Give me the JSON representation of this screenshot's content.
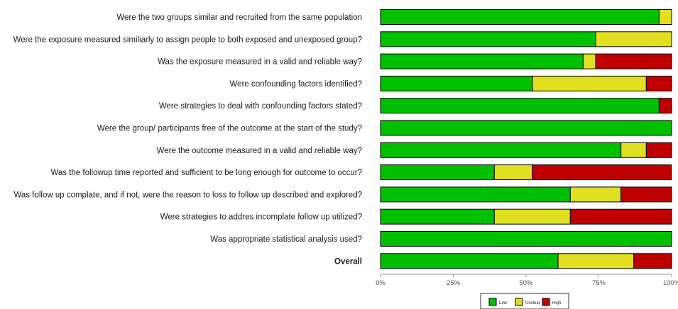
{
  "chart_data": {
    "type": "bar",
    "orientation": "horizontal",
    "stacked": true,
    "title": "",
    "xlabel": "",
    "ylabel": "",
    "xlim": [
      0,
      100
    ],
    "xticks": [
      "0%",
      "25%",
      "50%",
      "75%",
      "100%"
    ],
    "grid": false,
    "legend_position": "bottom",
    "categories": [
      "Were the two groups similar and recruited from the same population",
      "Were the exposure measured similiarly to assign people to both exposed and unexposed group?",
      "Was the exposure measured in a valid and reliable way?",
      "Were confounding factors identified?",
      "Were strategies to deal with confounding factors stated?",
      "Were the group/ participants free of the outcome at the start of the study?",
      "Were the outcome measured in a valid and reliable way?",
      "Was the followup time reported and sufficient to be long enough for outcome to occur?",
      "Was follow up complate, and if not, were the reason to loss to follow up described and explored?",
      "Were strategies to addres incomplate follow up utilized?",
      "Was appropriate statistical analysis used?",
      "Overall"
    ],
    "bold_categories": [
      "Overall"
    ],
    "series": [
      {
        "name": "Low",
        "color": "#00c000",
        "values": [
          95.7,
          73.9,
          69.6,
          52.2,
          95.7,
          100,
          82.6,
          39.1,
          65.2,
          39.1,
          100,
          61
        ]
      },
      {
        "name": "Unclear",
        "color": "#e0e020",
        "values": [
          4.3,
          26.1,
          4.3,
          39.1,
          0,
          0,
          8.7,
          13.0,
          17.4,
          26.1,
          0,
          26
        ]
      },
      {
        "name": "High",
        "color": "#c00000",
        "values": [
          0,
          0,
          26.1,
          8.7,
          4.3,
          0,
          8.7,
          47.8,
          17.4,
          34.8,
          0,
          13
        ]
      }
    ]
  }
}
